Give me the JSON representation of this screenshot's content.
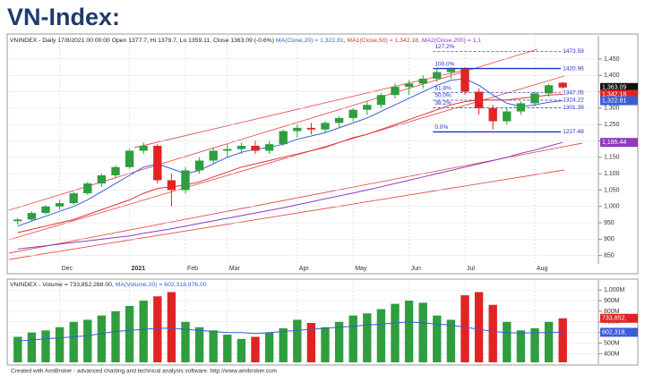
{
  "title": "VN-Index:",
  "footer": "Created with AmiBroker - advanced charting and technical analysis software. http://www.amibroker.com",
  "chart_data": [
    {
      "type": "candlestick",
      "header": "VNINDEX - Daily 17/8/2021 00:00:00 Open 1377.7, Hi 1379.7, Lo 1359.11, Close 1363.09 (-0.6%)",
      "categories": [
        null,
        null,
        null,
        "Dec",
        null,
        null,
        null,
        null,
        "2021",
        null,
        null,
        null,
        "Feb",
        null,
        null,
        "Mar",
        null,
        null,
        null,
        null,
        "Apr",
        null,
        null,
        null,
        "May",
        null,
        null,
        null,
        "Jun",
        null,
        null,
        null,
        "Jul",
        null,
        null,
        null,
        null,
        "Aug",
        null,
        null
      ],
      "open": [
        955,
        960,
        980,
        1000,
        1010,
        1040,
        1070,
        1095,
        1120,
        1170,
        1185,
        1080,
        1050,
        1110,
        1140,
        1170,
        1175,
        1185,
        1170,
        1190,
        1230,
        1240,
        1235,
        1255,
        1270,
        1295,
        1310,
        1340,
        1365,
        1375,
        1390,
        1410,
        1420,
        1350,
        1300,
        1260,
        1290,
        1315,
        1345,
        1377.7
      ],
      "high": [
        965,
        985,
        1005,
        1020,
        1045,
        1075,
        1100,
        1125,
        1175,
        1195,
        1190,
        1100,
        1120,
        1150,
        1180,
        1190,
        1195,
        1200,
        1200,
        1235,
        1250,
        1255,
        1260,
        1275,
        1300,
        1320,
        1345,
        1375,
        1385,
        1400,
        1420,
        1425,
        1425,
        1360,
        1310,
        1300,
        1320,
        1350,
        1375,
        1379.7
      ],
      "low": [
        945,
        955,
        975,
        990,
        1005,
        1035,
        1060,
        1085,
        1115,
        1160,
        1070,
        1000,
        1040,
        1100,
        1130,
        1150,
        1160,
        1160,
        1160,
        1185,
        1210,
        1220,
        1225,
        1240,
        1260,
        1280,
        1300,
        1330,
        1340,
        1360,
        1380,
        1390,
        1340,
        1280,
        1235,
        1250,
        1280,
        1305,
        1335,
        1359.11
      ],
      "close": [
        960,
        980,
        1000,
        1010,
        1040,
        1070,
        1095,
        1120,
        1170,
        1185,
        1080,
        1050,
        1110,
        1140,
        1170,
        1175,
        1185,
        1170,
        1190,
        1230,
        1240,
        1235,
        1255,
        1270,
        1295,
        1310,
        1340,
        1365,
        1375,
        1390,
        1410,
        1420,
        1350,
        1300,
        1260,
        1290,
        1315,
        1345,
        1370,
        1363.09
      ],
      "up_color": "#2e9e3e",
      "down_color": "#e02424",
      "series": [
        {
          "name": "MA(Close,20) = 1,322.81,",
          "color": "#3b5bdb",
          "values": [
            940,
            955,
            970,
            985,
            1000,
            1020,
            1045,
            1070,
            1095,
            1120,
            1130,
            1115,
            1100,
            1110,
            1130,
            1150,
            1165,
            1175,
            1180,
            1190,
            1205,
            1215,
            1225,
            1240,
            1255,
            1270,
            1290,
            1310,
            1330,
            1350,
            1370,
            1385,
            1390,
            1370,
            1340,
            1315,
            1305,
            1310,
            1318,
            1322.81
          ]
        },
        {
          "name": "MA1(Close,50) = 1,342.18,",
          "color": "#e03030",
          "values": [
            920,
            930,
            940,
            950,
            960,
            975,
            990,
            1005,
            1020,
            1040,
            1055,
            1060,
            1065,
            1075,
            1090,
            1105,
            1120,
            1130,
            1140,
            1150,
            1160,
            1170,
            1180,
            1195,
            1210,
            1220,
            1235,
            1250,
            1265,
            1280,
            1295,
            1310,
            1320,
            1325,
            1325,
            1325,
            1330,
            1335,
            1340,
            1342.18
          ]
        },
        {
          "name": "MA2(Close,200) = 1,1",
          "color": "#8e3bbf",
          "values": [
            870,
            875,
            880,
            885,
            890,
            895,
            900,
            905,
            910,
            918,
            925,
            932,
            940,
            948,
            956,
            964,
            972,
            980,
            988,
            996,
            1005,
            1014,
            1023,
            1032,
            1041,
            1050,
            1060,
            1070,
            1080,
            1090,
            1100,
            1110,
            1120,
            1130,
            1140,
            1150,
            1162,
            1172,
            1184,
            1195.44
          ]
        }
      ],
      "fib": [
        {
          "pct": "127.2%",
          "value": 1473.59
        },
        {
          "pct": "100.0%",
          "value": 1420.96
        },
        {
          "pct": "61.8%",
          "value": 1347.05
        },
        {
          "pct": "50.0%",
          "value": 1324.22
        },
        {
          "pct": "38.2%",
          "value": 1301.39
        },
        {
          "pct": "0.0%",
          "value": 1227.48
        }
      ],
      "fib_color": "#2030c0",
      "last_labels": [
        {
          "value": 1363.09,
          "label": "1,363.09",
          "color": "#111111"
        },
        {
          "value": 1342.18,
          "label": "1,342.18",
          "color": "#e02424"
        },
        {
          "value": 1322.81,
          "label": "1,322.81",
          "color": "#3b5bdb"
        },
        {
          "value": 1195.44,
          "label": "1,195.44",
          "color": "#8e3bbf"
        }
      ],
      "ylim": [
        830,
        1510
      ],
      "yticks": [
        850,
        900,
        950,
        {
          "value": 1000,
          "label": "1,000"
        },
        {
          "value": 1050,
          "label": "1,050"
        },
        {
          "value": 1100,
          "label": "1,100"
        },
        {
          "value": 1150,
          "label": "1,150"
        },
        {
          "value": 1200,
          "label": "1,200"
        },
        {
          "value": 1250,
          "label": "1,250"
        },
        {
          "value": 1300,
          "label": "1,300"
        },
        {
          "value": 1350,
          "label": "1,350"
        },
        {
          "value": 1400,
          "label": "1,400"
        },
        {
          "value": 1450,
          "label": "1,450"
        }
      ]
    },
    {
      "type": "bar",
      "header": "VNINDEX - Volume = 733,852,288.00,",
      "values": [
        560,
        600,
        620,
        650,
        700,
        720,
        760,
        800,
        850,
        900,
        940,
        980,
        700,
        650,
        620,
        580,
        540,
        560,
        600,
        640,
        720,
        690,
        650,
        700,
        760,
        780,
        820,
        870,
        900,
        880,
        760,
        720,
        950,
        980,
        860,
        700,
        620,
        640,
        700,
        733.852288
      ],
      "series": [
        {
          "name": "MA(Volume,20) = 602,318,976.00",
          "color": "#3b5bdb",
          "values": [
            520,
            530,
            540,
            550,
            560,
            570,
            590,
            610,
            620,
            630,
            640,
            640,
            630,
            620,
            610,
            600,
            600,
            590,
            600,
            610,
            620,
            630,
            640,
            650,
            660,
            670,
            680,
            690,
            700,
            690,
            680,
            670,
            650,
            630,
            610,
            600,
            595,
            598,
            600,
            602.318976
          ]
        }
      ],
      "last_labels": [
        {
          "value": 733.852288,
          "label": "733,852,",
          "color": "#e02424"
        },
        {
          "value": 602.318976,
          "label": "602,318,",
          "color": "#3b5bdb"
        }
      ],
      "ylim": [
        320,
        1060
      ],
      "yticks": [
        {
          "value": 400,
          "label": "400M"
        },
        {
          "value": 500,
          "label": "500M"
        },
        {
          "value": 600,
          "label": "600M"
        },
        {
          "value": 700,
          "label": "700M"
        },
        {
          "value": 800,
          "label": "800M"
        },
        {
          "value": 900,
          "label": "900M"
        },
        {
          "value": 1000,
          "label": "1,000M"
        }
      ]
    }
  ]
}
